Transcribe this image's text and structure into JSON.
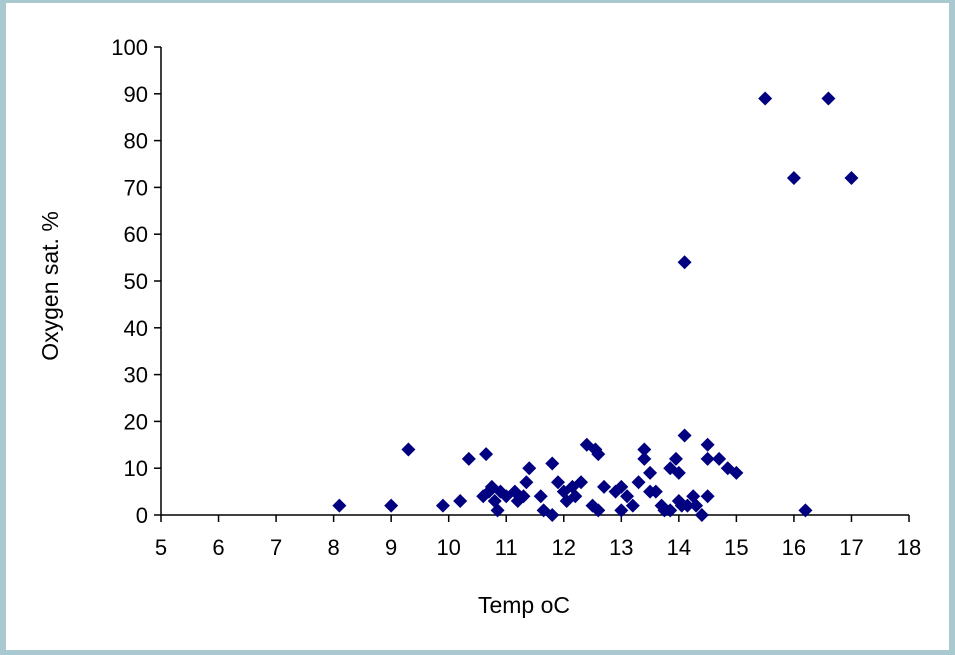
{
  "colors": {
    "frame": "#a9c8cf",
    "background": "#ffffff",
    "marker": "#000080",
    "axis": "#000000"
  },
  "chart_data": {
    "type": "scatter",
    "title": "",
    "xlabel": "Temp oC",
    "ylabel": "Oxygen sat. %",
    "xlim": [
      5,
      18
    ],
    "ylim": [
      0,
      100
    ],
    "xticks": [
      5,
      6,
      7,
      8,
      9,
      10,
      11,
      12,
      13,
      14,
      15,
      16,
      17,
      18
    ],
    "yticks": [
      0,
      10,
      20,
      30,
      40,
      50,
      60,
      70,
      80,
      90,
      100
    ],
    "grid": false,
    "legend": "none",
    "marker": "diamond",
    "points": [
      [
        8.1,
        2
      ],
      [
        9.0,
        2
      ],
      [
        9.3,
        14
      ],
      [
        9.9,
        2
      ],
      [
        10.2,
        3
      ],
      [
        10.35,
        12
      ],
      [
        10.65,
        13
      ],
      [
        10.6,
        4
      ],
      [
        10.7,
        5
      ],
      [
        10.75,
        6
      ],
      [
        10.8,
        3
      ],
      [
        10.85,
        1
      ],
      [
        10.9,
        5
      ],
      [
        11.0,
        4
      ],
      [
        11.15,
        5
      ],
      [
        11.2,
        3
      ],
      [
        11.3,
        4
      ],
      [
        11.35,
        7
      ],
      [
        11.4,
        10
      ],
      [
        11.6,
        4
      ],
      [
        11.65,
        1
      ],
      [
        11.8,
        11
      ],
      [
        11.8,
        0
      ],
      [
        11.9,
        7
      ],
      [
        12.0,
        5
      ],
      [
        12.05,
        3
      ],
      [
        12.15,
        6
      ],
      [
        12.2,
        4
      ],
      [
        12.3,
        7
      ],
      [
        12.4,
        15
      ],
      [
        12.5,
        2
      ],
      [
        12.55,
        14
      ],
      [
        12.6,
        13
      ],
      [
        12.6,
        1
      ],
      [
        12.7,
        6
      ],
      [
        12.9,
        5
      ],
      [
        13.0,
        6
      ],
      [
        13.0,
        1
      ],
      [
        13.1,
        4
      ],
      [
        13.2,
        2
      ],
      [
        13.3,
        7
      ],
      [
        13.4,
        14
      ],
      [
        13.4,
        12
      ],
      [
        13.5,
        9
      ],
      [
        13.5,
        5
      ],
      [
        13.6,
        5
      ],
      [
        13.7,
        2
      ],
      [
        13.75,
        1
      ],
      [
        13.85,
        1
      ],
      [
        13.85,
        10
      ],
      [
        13.95,
        12
      ],
      [
        14.0,
        9
      ],
      [
        14.0,
        3
      ],
      [
        14.05,
        2
      ],
      [
        14.1,
        17
      ],
      [
        14.1,
        54
      ],
      [
        14.15,
        2
      ],
      [
        14.25,
        4
      ],
      [
        14.3,
        2
      ],
      [
        14.4,
        0
      ],
      [
        14.5,
        15
      ],
      [
        14.5,
        12
      ],
      [
        14.5,
        4
      ],
      [
        14.7,
        12
      ],
      [
        14.85,
        10
      ],
      [
        15.0,
        9
      ],
      [
        15.5,
        89
      ],
      [
        16.0,
        72
      ],
      [
        16.2,
        1
      ],
      [
        16.6,
        89
      ],
      [
        17.0,
        72
      ]
    ]
  }
}
